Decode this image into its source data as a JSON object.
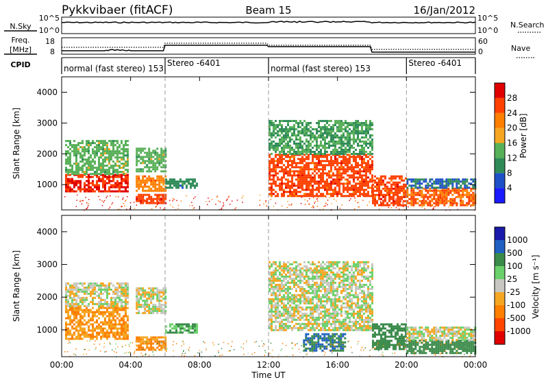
{
  "header": {
    "title": "Pykkvibaer (fitACF)",
    "beam": "Beam 15",
    "date": "16/Jan/2012"
  },
  "strips": {
    "nsky_label": "N.Sky",
    "nsky_ticks": [
      "10^5",
      "10^0"
    ],
    "nsearch_label": "N.Search",
    "nsearch_ticks": [
      "10^5",
      "10^0"
    ],
    "freq_label": "Freq.",
    "freq_unit": "[MHz]",
    "freq_ticks": [
      "18",
      "8"
    ],
    "nave_label": "Nave",
    "nave_ticks": [
      "60",
      "0"
    ],
    "cpid_label": "CPID"
  },
  "cpid_segments": [
    {
      "label": "normal (fast stereo) 153",
      "start_h": 0,
      "end_h": 6
    },
    {
      "label": "Stereo -6401",
      "start_h": 6,
      "end_h": 12
    },
    {
      "label": "normal (fast stereo) 153",
      "start_h": 12,
      "end_h": 20
    },
    {
      "label": "Stereo -6401",
      "start_h": 20,
      "end_h": 24
    }
  ],
  "x_axis": {
    "label": "Time UT",
    "ticks": [
      "00:00",
      "04:00",
      "08:00",
      "12:00",
      "16:00",
      "20:00",
      "00:00"
    ],
    "range_h": [
      0,
      24
    ]
  },
  "power_panel": {
    "ylabel": "Slant Range [km]",
    "yticks": [
      "4000",
      "3000",
      "2000",
      "1000"
    ],
    "colorbar_label": "Power [dB]",
    "colorbar_ticks": [
      "28",
      "24",
      "20",
      "16",
      "12",
      "8",
      "4"
    ],
    "colors": [
      "#1a1aff",
      "#1e50c8",
      "#2e8b57",
      "#58b058",
      "#f5a623",
      "#ff7f00",
      "#ff4000",
      "#e00000"
    ]
  },
  "velocity_panel": {
    "ylabel": "Slant Range [km]",
    "yticks": [
      "4000",
      "3000",
      "2000",
      "1000"
    ],
    "colorbar_label": "Velocity [m s⁻¹]",
    "colorbar_ticks": [
      "1000",
      "500",
      "100",
      "25",
      "-25",
      "-100",
      "-500",
      "-1000"
    ],
    "colors": [
      "#1a1aaa",
      "#2060c0",
      "#3a8a4a",
      "#6ad06a",
      "#c8c8c0",
      "#f5a623",
      "#ff7f00",
      "#ff4500",
      "#e00000"
    ]
  },
  "chart_data": [
    {
      "type": "heatmap",
      "title": "",
      "xlabel": "Time UT",
      "ylabel": "Slant Range [km]",
      "xlim_hours": [
        0,
        24
      ],
      "ylim_km": [
        180,
        4500
      ],
      "colorbar": {
        "label": "Power [dB]",
        "range": [
          0,
          32
        ]
      },
      "echo_regions": [
        {
          "t0": 0.2,
          "t1": 3.8,
          "r0": 750,
          "r1": 1350,
          "value": 28
        },
        {
          "t0": 0.2,
          "t1": 3.8,
          "r0": 1350,
          "r1": 2450,
          "value": 14
        },
        {
          "t0": 4.3,
          "t1": 6.0,
          "r0": 400,
          "r1": 700,
          "value": 26
        },
        {
          "t0": 4.3,
          "t1": 6.0,
          "r0": 800,
          "r1": 1300,
          "value": 22
        },
        {
          "t0": 4.3,
          "t1": 6.0,
          "r0": 1400,
          "r1": 2200,
          "value": 14
        },
        {
          "t0": 6.0,
          "t1": 7.8,
          "r0": 900,
          "r1": 1200,
          "value": 10
        },
        {
          "t0": 12.0,
          "t1": 18.0,
          "r0": 600,
          "r1": 2000,
          "value": 26
        },
        {
          "t0": 12.0,
          "t1": 18.0,
          "r0": 2000,
          "r1": 3100,
          "value": 12
        },
        {
          "t0": 18.0,
          "t1": 20.0,
          "r0": 350,
          "r1": 1300,
          "value": 26
        },
        {
          "t0": 20.0,
          "t1": 24.0,
          "r0": 300,
          "r1": 900,
          "value": 24
        },
        {
          "t0": 20.0,
          "t1": 24.0,
          "r0": 900,
          "r1": 1200,
          "value": 8
        }
      ]
    },
    {
      "type": "heatmap",
      "title": "",
      "xlabel": "Time UT",
      "ylabel": "Slant Range [km]",
      "xlim_hours": [
        0,
        24
      ],
      "ylim_km": [
        180,
        4500
      ],
      "colorbar": {
        "label": "Velocity [m s⁻¹]",
        "range": [
          -1000,
          1000
        ]
      },
      "echo_regions": [
        {
          "t0": 0.2,
          "t1": 3.8,
          "r0": 750,
          "r1": 1700,
          "value": -100
        },
        {
          "t0": 0.2,
          "t1": 3.8,
          "r0": 1700,
          "r1": 2450,
          "value": 0
        },
        {
          "t0": 4.3,
          "t1": 6.0,
          "r0": 400,
          "r1": 800,
          "value": -100
        },
        {
          "t0": 4.3,
          "t1": 6.0,
          "r0": 1500,
          "r1": 2300,
          "value": 0
        },
        {
          "t0": 6.0,
          "t1": 7.8,
          "r0": 900,
          "r1": 1200,
          "value": 100
        },
        {
          "t0": 12.0,
          "t1": 18.0,
          "r0": 1000,
          "r1": 3100,
          "value": 0
        },
        {
          "t0": 14.0,
          "t1": 16.5,
          "r0": 350,
          "r1": 900,
          "value": 500
        },
        {
          "t0": 18.0,
          "t1": 20.0,
          "r0": 400,
          "r1": 1200,
          "value": 200
        },
        {
          "t0": 20.0,
          "t1": 24.0,
          "r0": 300,
          "r1": 700,
          "value": 200
        },
        {
          "t0": 20.0,
          "t1": 24.0,
          "r0": 700,
          "r1": 1100,
          "value": 0
        }
      ]
    }
  ]
}
